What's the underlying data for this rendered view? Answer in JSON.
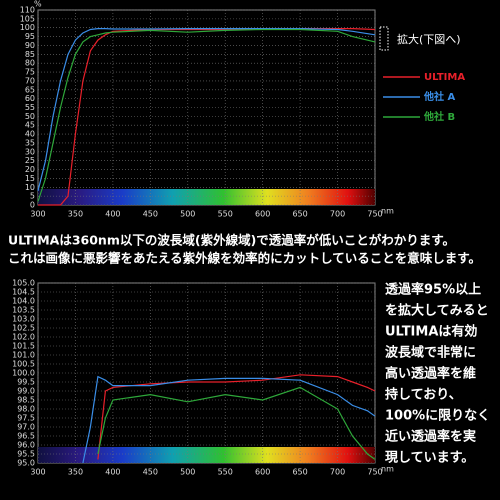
{
  "chart_data": [
    {
      "type": "line",
      "y_unit": "%",
      "x_unit": "nm",
      "annotation": "拡大(下図へ)",
      "legend": true,
      "x": [
        300,
        310,
        320,
        330,
        340,
        350,
        360,
        370,
        380,
        390,
        400,
        450,
        500,
        550,
        600,
        650,
        700,
        720,
        750
      ],
      "xlim": [
        300,
        750
      ],
      "xticks": [
        300,
        350,
        400,
        450,
        500,
        550,
        600,
        650,
        700,
        750
      ],
      "ylim": [
        0,
        110
      ],
      "yticks": [
        0,
        5,
        10,
        15,
        20,
        25,
        30,
        35,
        40,
        45,
        50,
        55,
        60,
        65,
        70,
        75,
        80,
        85,
        90,
        95,
        100,
        105,
        110
      ],
      "grid": true,
      "series": [
        {
          "name": "ULTIMA",
          "color": "#e8202a",
          "values": [
            0,
            0,
            0,
            0,
            5,
            40,
            70,
            87,
            93,
            96,
            98,
            99,
            99,
            99,
            99.5,
            99.5,
            99.5,
            99.5,
            99
          ]
        },
        {
          "name": "他社 A",
          "color": "#3a8ee8",
          "values": [
            8,
            25,
            50,
            70,
            85,
            93,
            97,
            99,
            99.5,
            99.5,
            99.3,
            99.3,
            99.5,
            99.5,
            99.5,
            99.5,
            99,
            98,
            96
          ]
        },
        {
          "name": "他社 B",
          "color": "#2ea83a",
          "values": [
            2,
            15,
            35,
            55,
            72,
            85,
            92,
            95,
            96,
            97,
            97.5,
            98.5,
            97.5,
            98.5,
            99,
            99,
            98,
            95,
            92
          ]
        }
      ]
    },
    {
      "type": "line",
      "x_unit": "nm",
      "x": [
        360,
        370,
        380,
        390,
        400,
        450,
        500,
        550,
        600,
        650,
        700,
        720,
        740,
        750
      ],
      "xlim": [
        300,
        750
      ],
      "xticks": [
        300,
        350,
        400,
        450,
        500,
        550,
        600,
        650,
        700,
        750
      ],
      "ylim": [
        95,
        105
      ],
      "yticks": [
        {
          "value": 95,
          "label": "95.0"
        },
        95.5,
        {
          "value": 96,
          "label": "96.0"
        },
        96.5,
        {
          "value": 97,
          "label": "97.0"
        },
        97.5,
        {
          "value": 98,
          "label": "98.0"
        },
        98.5,
        {
          "value": 99,
          "label": "99.0"
        },
        99.5,
        {
          "value": 100,
          "label": "100.0"
        },
        100.5,
        {
          "value": 101,
          "label": "101.0"
        },
        101.5,
        {
          "value": 102,
          "label": "102.0"
        },
        102.5,
        {
          "value": 103,
          "label": "103.0"
        },
        103.5,
        {
          "value": 104,
          "label": "104.0"
        },
        104.5,
        {
          "value": 105,
          "label": "105.0"
        }
      ],
      "grid": true,
      "series": [
        {
          "name": "ULTIMA",
          "color": "#e8202a",
          "values": [
            null,
            null,
            95.2,
            99,
            99.2,
            99.4,
            99.5,
            99.5,
            99.6,
            99.9,
            99.8,
            99.5,
            99.2,
            99.0
          ]
        },
        {
          "name": "他社 A",
          "color": "#3a8ee8",
          "values": [
            95,
            97,
            99.8,
            99.6,
            99.3,
            99.3,
            99.6,
            99.7,
            99.7,
            99.6,
            98.8,
            98.2,
            97.9,
            97.6
          ]
        },
        {
          "name": "他社 B",
          "color": "#2ea83a",
          "values": [
            null,
            null,
            95.5,
            97.5,
            98.5,
            98.8,
            98.4,
            98.8,
            98.5,
            99.2,
            98,
            96.5,
            95.5,
            95.2
          ]
        }
      ]
    }
  ],
  "caption": [
    "ULTIMAは360nm以下の波長域(紫外線域)で透過率が低いことがわかります。",
    "これは画像に悪影響をあたえる紫外線を効率的にカットしていることを意味します。"
  ],
  "side_text": [
    "透過率95%以上",
    "を拡大してみると",
    "ULTIMAは有効",
    "波長域で非常に",
    "高い透過率を維",
    "持しており、",
    "100%に限りなく",
    "近い透過率を実",
    "現しています。"
  ]
}
